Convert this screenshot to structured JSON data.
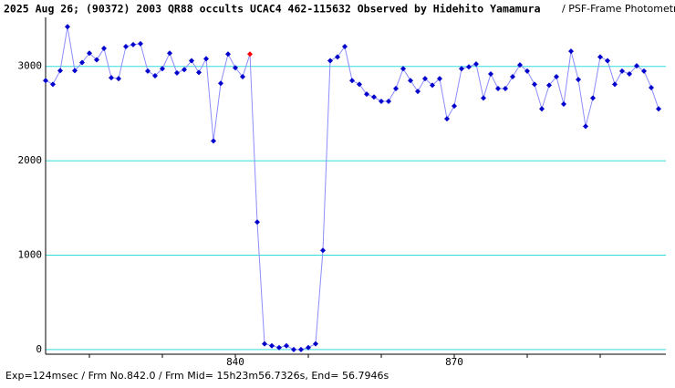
{
  "chart_data": {
    "type": "line",
    "title": "2025 Aug 26; (90372) 2003 QR88 occults UCAC4 462-115632 Observed by Hidehito Yamamura",
    "subtitle": "/ PSF-Frame Photometry /",
    "footer": "Exp=124msec / Frm No.842.0 / Frm Mid= 15h23m56.7326s,  End= 56.7946s",
    "x": [
      814,
      815,
      816,
      817,
      818,
      819,
      820,
      821,
      822,
      823,
      824,
      825,
      826,
      827,
      828,
      829,
      830,
      831,
      832,
      833,
      834,
      835,
      836,
      837,
      838,
      839,
      840,
      841,
      842,
      843,
      844,
      845,
      846,
      847,
      848,
      849,
      850,
      851,
      852,
      853,
      854,
      855,
      856,
      857,
      858,
      859,
      860,
      861,
      862,
      863,
      864,
      865,
      866,
      867,
      868,
      869,
      870,
      871,
      872,
      873,
      874,
      875,
      876,
      877,
      878,
      879,
      880,
      881,
      882,
      883,
      884,
      885,
      886,
      887,
      888,
      889,
      890,
      891,
      892,
      893,
      894,
      895,
      896,
      897,
      898
    ],
    "series": [
      {
        "color": "#0000cc",
        "line_color": "#8c8cff",
        "values": [
          2850,
          2810,
          2955,
          3420,
          2955,
          3040,
          3140,
          3070,
          3190,
          2880,
          2870,
          3210,
          3230,
          3240,
          2950,
          2900,
          2975,
          3140,
          2930,
          2965,
          3060,
          2935,
          3080,
          2210,
          2820,
          3130,
          2985,
          2890,
          3130,
          1350,
          60,
          40,
          20,
          40,
          0,
          0,
          20,
          60,
          1050,
          3060,
          3100,
          3210,
          2850,
          2810,
          2705,
          2675,
          2630,
          2630,
          2765,
          2975,
          2850,
          2735,
          2870,
          2800,
          2870,
          2445,
          2580,
          2975,
          2995,
          3025,
          2665,
          2920,
          2765,
          2765,
          2890,
          3015,
          2950,
          2810,
          2550,
          2800,
          2890,
          2600,
          3160,
          2860,
          2365,
          2665,
          3100,
          3060,
          2810,
          2950,
          2920,
          3005,
          2950,
          2775,
          2550
        ]
      }
    ],
    "highlight_x": 842,
    "highlight_color": "#ff0000",
    "xlim": [
      814,
      899
    ],
    "ylim": [
      -50,
      3500
    ],
    "xticks": [
      840,
      870
    ],
    "xminor_ticks": [
      820,
      830,
      850,
      860,
      880,
      890
    ],
    "yticks": [
      0,
      1000,
      2000,
      3000
    ],
    "grid": true,
    "grid_color": "#33dddd"
  }
}
